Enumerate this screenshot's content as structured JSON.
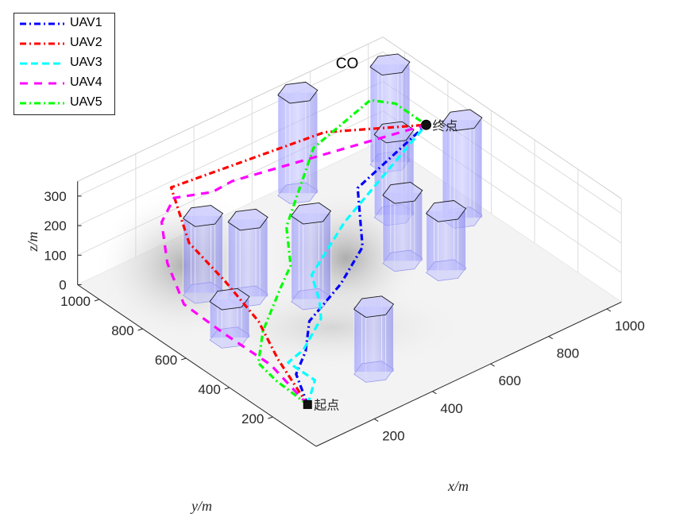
{
  "chart_data": {
    "type": "line",
    "title": "CO",
    "xlabel": "x/m",
    "ylabel": "y/m",
    "zlabel": "z/m",
    "xticks": [
      "200",
      "400",
      "600",
      "800",
      "1000"
    ],
    "yticks": [
      "200",
      "400",
      "600",
      "800",
      "1000"
    ],
    "zticks": [
      "0",
      "100",
      "200",
      "300"
    ],
    "xlim": [
      0,
      1050
    ],
    "ylim": [
      0,
      1100
    ],
    "zlim": [
      0,
      350
    ],
    "grid": true,
    "legend_position": "top-left",
    "start_label": "起点",
    "end_label": "终点",
    "start": [
      90,
      160,
      20
    ],
    "end": [
      990,
      820,
      220
    ],
    "obstacles": [
      {
        "x": 150,
        "y": 600,
        "h": 130
      },
      {
        "x": 230,
        "y": 830,
        "h": 260
      },
      {
        "x": 310,
        "y": 730,
        "h": 260
      },
      {
        "x": 340,
        "y": 190,
        "h": 220
      },
      {
        "x": 430,
        "y": 600,
        "h": 290
      },
      {
        "x": 720,
        "y": 1050,
        "h": 340
      },
      {
        "x": 730,
        "y": 580,
        "h": 230
      },
      {
        "x": 790,
        "y": 460,
        "h": 200
      },
      {
        "x": 850,
        "y": 780,
        "h": 280
      },
      {
        "x": 980,
        "y": 640,
        "h": 330
      },
      {
        "x": 1000,
        "y": 1000,
        "h": 330
      }
    ],
    "series": [
      {
        "name": "UAV1",
        "color": "#0000ff",
        "dash": "8,4,2,4",
        "points": [
          [
            90,
            160,
            20
          ],
          [
            140,
            280,
            40
          ],
          [
            210,
            330,
            60
          ],
          [
            290,
            420,
            80
          ],
          [
            420,
            450,
            130
          ],
          [
            540,
            510,
            170
          ],
          [
            680,
            720,
            200
          ],
          [
            990,
            820,
            220
          ]
        ]
      },
      {
        "name": "UAV2",
        "color": "#ff0000",
        "dash": "8,4,2,4",
        "points": [
          [
            90,
            160,
            20
          ],
          [
            130,
            350,
            60
          ],
          [
            160,
            480,
            110
          ],
          [
            150,
            620,
            180
          ],
          [
            130,
            760,
            250
          ],
          [
            180,
            910,
            340
          ],
          [
            700,
            900,
            290
          ],
          [
            990,
            820,
            220
          ]
        ]
      },
      {
        "name": "UAV3",
        "color": "#00ffff",
        "dash": "9,5",
        "points": [
          [
            90,
            160,
            20
          ],
          [
            160,
            220,
            40
          ],
          [
            150,
            330,
            50
          ],
          [
            210,
            340,
            60
          ],
          [
            330,
            420,
            70
          ],
          [
            370,
            480,
            80
          ],
          [
            380,
            530,
            140
          ],
          [
            560,
            620,
            190
          ],
          [
            990,
            820,
            220
          ]
        ]
      },
      {
        "name": "UAV4",
        "color": "#ff00ff",
        "dash": "10,8",
        "points": [
          [
            90,
            160,
            20
          ],
          [
            90,
            330,
            70
          ],
          [
            80,
            530,
            80
          ],
          [
            60,
            690,
            110
          ],
          [
            70,
            780,
            200
          ],
          [
            110,
            860,
            280
          ],
          [
            190,
            910,
            300
          ],
          [
            330,
            920,
            250
          ],
          [
            420,
            950,
            230
          ],
          [
            990,
            820,
            220
          ]
        ]
      },
      {
        "name": "UAV5",
        "color": "#00ff00",
        "dash": "8,4,2,4",
        "points": [
          [
            90,
            160,
            20
          ],
          [
            80,
            290,
            40
          ],
          [
            70,
            360,
            70
          ],
          [
            130,
            420,
            120
          ],
          [
            250,
            500,
            170
          ],
          [
            330,
            560,
            180
          ],
          [
            420,
            700,
            200
          ],
          [
            640,
            870,
            280
          ],
          [
            880,
            930,
            300
          ],
          [
            930,
            880,
            290
          ],
          [
            990,
            820,
            220
          ]
        ]
      }
    ]
  }
}
